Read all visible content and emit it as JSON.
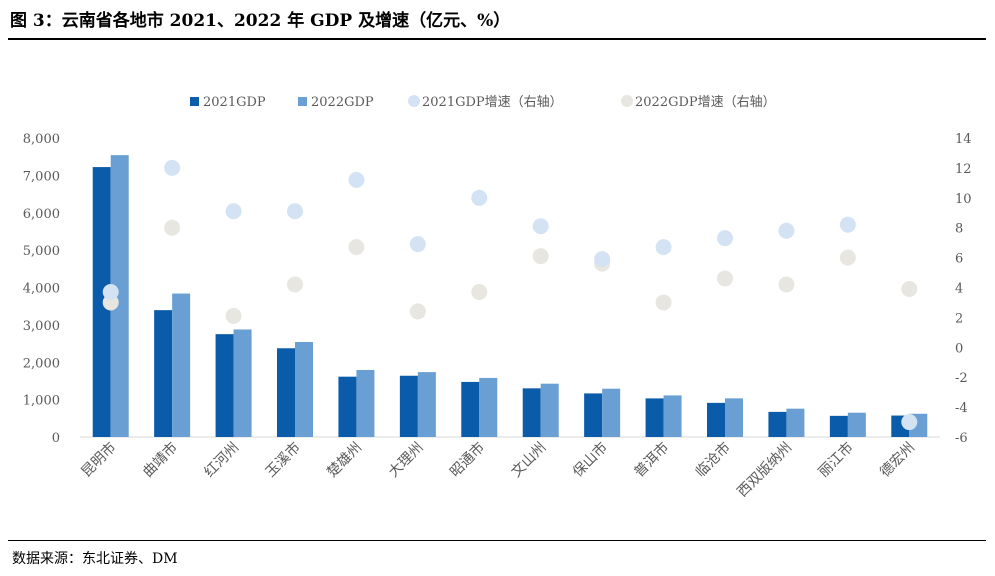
{
  "figure": {
    "title": "图 3：云南省各地市 2021、2022 年 GDP 及增速（亿元、%）",
    "source": "数据来源：东北证券、DM"
  },
  "colors": {
    "gdp2021": "#0B5BAB",
    "gdp2022": "#6A9FD3",
    "growth2021": "#D4E3F3",
    "growth2022": "#E8E6E0"
  },
  "chart_data": {
    "type": "bar",
    "categories": [
      "昆明市",
      "曲靖市",
      "红河州",
      "玉溪市",
      "楚雄州",
      "大理州",
      "昭通市",
      "文山州",
      "保山市",
      "普洱市",
      "临沧市",
      "西双版纳州",
      "丽江市",
      "德宏州"
    ],
    "series": [
      {
        "name": "2021GDP",
        "kind": "bar",
        "axis": "left",
        "values": [
          7222,
          3394,
          2752,
          2374,
          1614,
          1639,
          1474,
          1302,
          1166,
          1033,
          913,
          672,
          566,
          574
        ]
      },
      {
        "name": "2022GDP",
        "kind": "bar",
        "axis": "left",
        "values": [
          7541,
          3838,
          2877,
          2542,
          1793,
          1736,
          1581,
          1426,
          1292,
          1113,
          1034,
          758,
          650,
          622
        ]
      },
      {
        "name": "2021GDP增速（右轴）",
        "kind": "scatter",
        "axis": "right",
        "values": [
          3.7,
          12.0,
          9.1,
          9.1,
          11.2,
          6.9,
          10.0,
          8.1,
          5.9,
          6.7,
          7.3,
          7.8,
          8.2,
          -5.0
        ]
      },
      {
        "name": "2022GDP增速（右轴）",
        "kind": "scatter",
        "axis": "right",
        "values": [
          3.0,
          8.0,
          2.1,
          4.2,
          6.7,
          2.4,
          3.7,
          6.1,
          5.6,
          3.0,
          4.6,
          4.2,
          6.0,
          3.9
        ]
      }
    ],
    "y_left": {
      "min": 0,
      "max": 8000,
      "step": 1000,
      "tick_labels": [
        "0",
        "1,000",
        "2,000",
        "3,000",
        "4,000",
        "5,000",
        "6,000",
        "7,000",
        "8,000"
      ]
    },
    "y_right": {
      "min": -6,
      "max": 14,
      "step": 2,
      "tick_labels": [
        "-6",
        "-4",
        "-2",
        "0",
        "2",
        "4",
        "6",
        "8",
        "10",
        "12",
        "14"
      ]
    },
    "grid": false,
    "legend_position": "top"
  }
}
